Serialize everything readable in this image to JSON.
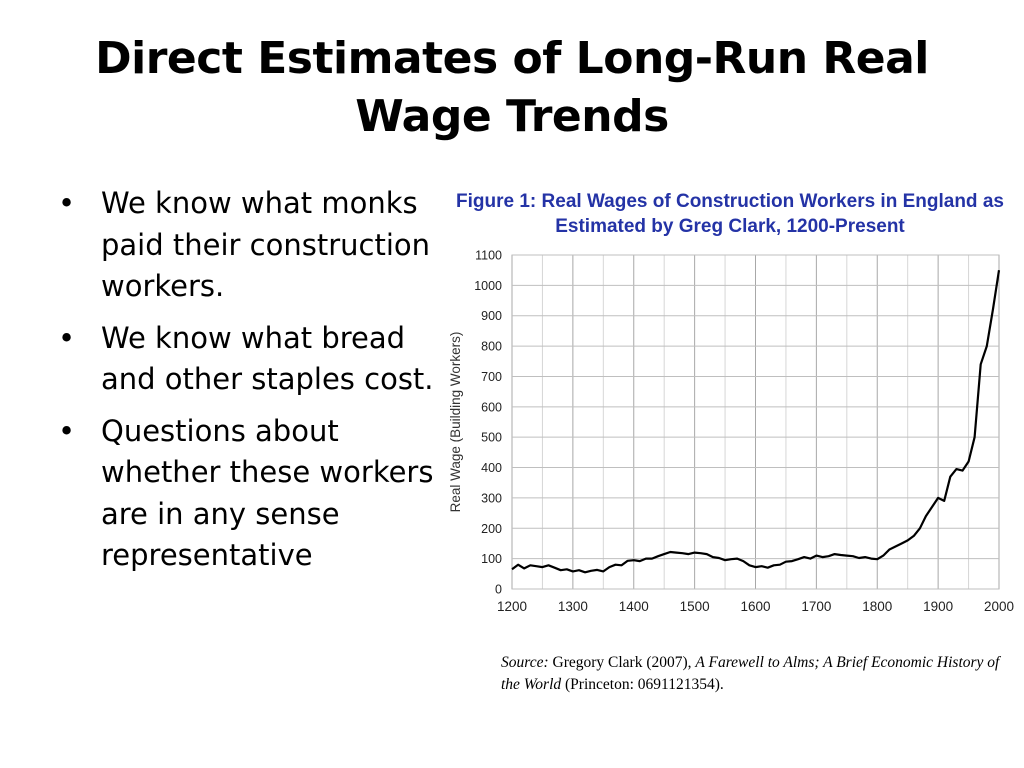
{
  "slide": {
    "title_line1": "Direct Estimates of Long-Run Real",
    "title_line2": "Wage Trends",
    "bullets": [
      "We know what monks paid their construction workers.",
      "We know what bread and other staples cost.",
      "Questions about whether these workers are in any sense representative"
    ],
    "bullet_glyph": "•"
  },
  "source": {
    "label": "Source:",
    "text1": "Gregory Clark (2007), ",
    "book_title": "A Farewell to Alms; A Brief Economic History of the World",
    "text2": " (Princeton: 0691121354)."
  },
  "chart_data": {
    "type": "line",
    "title": "Figure 1: Real Wages of Construction Workers in England as Estimated by Greg Clark, 1200-Present",
    "xlabel": "",
    "ylabel": "Real Wage (Building Workers)",
    "xlim": [
      1200,
      2000
    ],
    "ylim": [
      0,
      1100
    ],
    "xticks": [
      1200,
      1300,
      1400,
      1500,
      1600,
      1700,
      1800,
      1900,
      2000
    ],
    "yticks": [
      0,
      100,
      200,
      300,
      400,
      500,
      600,
      700,
      800,
      900,
      1000,
      1100
    ],
    "x_minor_step": 50,
    "grid": true,
    "line_color": "#000000",
    "series": [
      {
        "name": "",
        "x": [
          1200,
          1210,
          1220,
          1230,
          1240,
          1250,
          1260,
          1270,
          1280,
          1290,
          1300,
          1310,
          1320,
          1330,
          1340,
          1350,
          1360,
          1370,
          1380,
          1390,
          1400,
          1410,
          1420,
          1430,
          1440,
          1450,
          1460,
          1470,
          1480,
          1490,
          1500,
          1510,
          1520,
          1530,
          1540,
          1550,
          1560,
          1570,
          1580,
          1590,
          1600,
          1610,
          1620,
          1630,
          1640,
          1650,
          1660,
          1670,
          1680,
          1690,
          1700,
          1710,
          1720,
          1730,
          1740,
          1750,
          1760,
          1770,
          1780,
          1790,
          1800,
          1810,
          1820,
          1830,
          1840,
          1850,
          1860,
          1870,
          1880,
          1890,
          1900,
          1910,
          1920,
          1930,
          1940,
          1950,
          1960,
          1970,
          1980,
          1990,
          2000
        ],
        "values": [
          65,
          80,
          68,
          78,
          75,
          72,
          78,
          70,
          62,
          65,
          58,
          62,
          55,
          60,
          63,
          58,
          72,
          80,
          78,
          93,
          95,
          92,
          100,
          100,
          108,
          115,
          122,
          120,
          118,
          115,
          120,
          118,
          115,
          105,
          102,
          95,
          98,
          100,
          92,
          78,
          72,
          75,
          70,
          78,
          80,
          90,
          92,
          98,
          105,
          100,
          110,
          105,
          108,
          115,
          112,
          110,
          108,
          102,
          105,
          100,
          98,
          110,
          130,
          140,
          150,
          160,
          175,
          200,
          240,
          270,
          300,
          290,
          370,
          395,
          390,
          420,
          500,
          740,
          800,
          920,
          1050
        ]
      }
    ]
  }
}
